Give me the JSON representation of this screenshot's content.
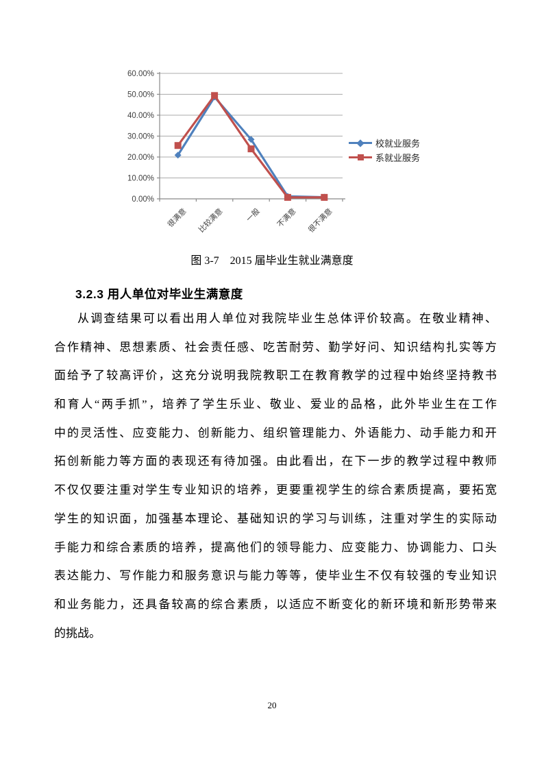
{
  "figure_caption": "图 3-7　2015 届毕业生就业满意度",
  "heading": "3.2.3 用人单位对毕业生满意度",
  "body": {
    "lines": [
      "从调查结果可以看出用人单位对我院毕业生总体评价较高。在敬业精神、",
      "合作精神、思想素质、社会责任感、吃苦耐劳、勤学好问、知识结构扎实等方",
      "面给予了较高评价，这充分说明我院教职工在教育教学的过程中始终坚持教书",
      "和育人“两手抓”，培养了学生乐业、敬业、爱业的品格，此外毕业生在工作",
      "中的灵活性、应变能力、创新能力、组织管理能力、外语能力、动手能力和开",
      "拓创新能力等方面的表现还有待加强。由此看出，在下一步的教学过程中教师",
      "不仅仅要注重对学生专业知识的培养，更要重视学生的综合素质提高，要拓宽",
      "学生的知识面，加强基本理论、基础知识的学习与训练，注重对学生的实际动",
      "手能力和综合素质的培养，提高他们的领导能力、应变能力、协调能力、口头",
      "表达能力、写作能力和服务意识与能力等等，使毕业生不仅有较强的专业知识",
      "和业务能力，还具备较高的综合素质，以适应不断变化的新环境和新形势带来",
      "的挑战。"
    ]
  },
  "page": {
    "number": "20"
  },
  "chart_data": {
    "type": "line",
    "categories": [
      "很满意",
      "比较满意",
      "一般",
      "不满意",
      "很不满意"
    ],
    "series": [
      {
        "name": "校就业服务",
        "values": [
          20.9,
          48.7,
          28.4,
          1.2,
          0.8
        ],
        "color": "#4F81BD",
        "marker": "diamond"
      },
      {
        "name": "系就业服务",
        "values": [
          25.5,
          49.4,
          23.9,
          0.7,
          0.7
        ],
        "color": "#C0504D",
        "marker": "square"
      }
    ],
    "title": "",
    "xlabel": "",
    "ylabel": "",
    "ylim": [
      0,
      60
    ],
    "y_tick_step": 10,
    "y_ticks": [
      "0.00%",
      "10.00%",
      "20.00%",
      "30.00%",
      "40.00%",
      "50.00%",
      "60.00%"
    ],
    "grid": true,
    "legend_position": "right",
    "gridline_color": "#ABABAB",
    "axis_color": "#898989",
    "tick_label_color": "#3f3f3f"
  }
}
